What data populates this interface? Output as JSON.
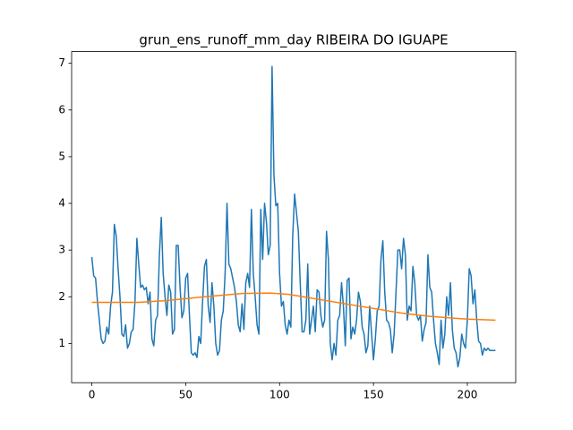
{
  "chart_data": {
    "type": "line",
    "title": "grun_ens_runoff_mm_day RIBEIRA DO IGUAPE",
    "x": [
      0,
      1,
      2,
      3,
      4,
      5,
      6,
      7,
      8,
      9,
      10,
      11,
      12,
      13,
      14,
      15,
      16,
      17,
      18,
      19,
      20,
      21,
      22,
      23,
      24,
      25,
      26,
      27,
      28,
      29,
      30,
      31,
      32,
      33,
      34,
      35,
      36,
      37,
      38,
      39,
      40,
      41,
      42,
      43,
      44,
      45,
      46,
      47,
      48,
      49,
      50,
      51,
      52,
      53,
      54,
      55,
      56,
      57,
      58,
      59,
      60,
      61,
      62,
      63,
      64,
      65,
      66,
      67,
      68,
      69,
      70,
      71,
      72,
      73,
      74,
      75,
      76,
      77,
      78,
      79,
      80,
      81,
      82,
      83,
      84,
      85,
      86,
      87,
      88,
      89,
      90,
      91,
      92,
      93,
      94,
      95,
      96,
      97,
      98,
      99,
      100,
      101,
      102,
      103,
      104,
      105,
      106,
      107,
      108,
      109,
      110,
      111,
      112,
      113,
      114,
      115,
      116,
      117,
      118,
      119,
      120,
      121,
      122,
      123,
      124,
      125,
      126,
      127,
      128,
      129,
      130,
      131,
      132,
      133,
      134,
      135,
      136,
      137,
      138,
      139,
      140,
      141,
      142,
      143,
      144,
      145,
      146,
      147,
      148,
      149,
      150,
      151,
      152,
      153,
      154,
      155,
      156,
      157,
      158,
      159,
      160,
      161,
      162,
      163,
      164,
      165,
      166,
      167,
      168,
      169,
      170,
      171,
      172,
      173,
      174,
      175,
      176,
      177,
      178,
      179,
      180,
      181,
      182,
      183,
      184,
      185,
      186,
      187,
      188,
      189,
      190,
      191,
      192,
      193,
      194,
      195,
      196,
      197,
      198,
      199,
      200,
      201,
      202,
      203,
      204,
      205,
      206,
      207,
      208,
      209,
      210,
      211,
      212,
      213,
      214,
      215
    ],
    "series": [
      {
        "color": "#1f77b4",
        "values": [
          2.85,
          2.45,
          2.4,
          1.9,
          1.5,
          1.1,
          1.0,
          1.05,
          1.35,
          1.2,
          1.8,
          2.1,
          3.55,
          3.3,
          2.6,
          2.0,
          1.2,
          1.15,
          1.4,
          0.9,
          1.0,
          1.25,
          1.3,
          1.9,
          3.25,
          2.7,
          2.2,
          2.25,
          2.15,
          2.2,
          1.85,
          2.1,
          1.1,
          0.95,
          1.5,
          1.6,
          2.9,
          3.7,
          2.5,
          2.0,
          1.6,
          2.25,
          2.1,
          1.2,
          1.3,
          3.1,
          3.1,
          2.2,
          1.55,
          1.7,
          2.4,
          2.5,
          1.6,
          0.8,
          0.75,
          0.8,
          0.7,
          1.15,
          1.0,
          1.9,
          2.65,
          2.8,
          1.8,
          1.45,
          2.3,
          1.8,
          1.0,
          0.75,
          0.85,
          1.5,
          1.7,
          2.5,
          4.0,
          2.7,
          2.6,
          2.4,
          2.2,
          1.9,
          1.4,
          1.25,
          1.85,
          1.3,
          2.3,
          2.5,
          2.2,
          3.87,
          2.5,
          2.0,
          1.4,
          1.2,
          3.87,
          2.8,
          4.0,
          3.6,
          2.9,
          3.1,
          6.93,
          4.6,
          3.95,
          4.0,
          2.5,
          1.8,
          1.9,
          1.4,
          1.2,
          1.5,
          1.35,
          3.3,
          4.2,
          3.8,
          3.4,
          2.3,
          1.25,
          1.25,
          1.5,
          2.7,
          1.2,
          1.5,
          1.8,
          1.25,
          2.15,
          2.1,
          1.6,
          1.35,
          1.5,
          3.4,
          2.8,
          1.0,
          0.65,
          1.0,
          0.75,
          1.5,
          1.6,
          2.3,
          1.8,
          0.95,
          2.35,
          2.4,
          1.1,
          1.35,
          1.2,
          1.5,
          2.1,
          1.9,
          1.35,
          1.2,
          0.8,
          0.95,
          1.8,
          1.2,
          0.65,
          1.1,
          1.7,
          1.8,
          2.8,
          3.2,
          2.1,
          1.5,
          1.45,
          1.3,
          0.8,
          1.2,
          2.1,
          3.0,
          3.0,
          2.6,
          3.25,
          2.9,
          1.5,
          1.8,
          1.7,
          2.65,
          2.3,
          1.6,
          1.5,
          1.6,
          1.05,
          1.3,
          1.45,
          2.9,
          2.2,
          2.1,
          1.5,
          1.0,
          0.8,
          0.55,
          1.5,
          0.9,
          1.2,
          2.0,
          1.6,
          2.3,
          1.3,
          0.9,
          0.8,
          0.5,
          0.7,
          1.2,
          1.0,
          0.9,
          1.5,
          2.6,
          2.45,
          1.85,
          2.15,
          1.5,
          1.05,
          1.0,
          0.75,
          0.9,
          0.85,
          0.9,
          0.85,
          0.85,
          0.85,
          0.85
        ]
      },
      {
        "color": "#ff7f0e",
        "x": [
          0,
          25,
          40,
          60,
          80,
          95,
          105,
          120,
          135,
          150,
          165,
          180,
          200,
          215
        ],
        "values": [
          1.88,
          1.88,
          1.92,
          2.0,
          2.07,
          2.08,
          2.05,
          1.95,
          1.85,
          1.75,
          1.65,
          1.58,
          1.52,
          1.5
        ]
      }
    ],
    "xlim": [
      -10.75,
      225.75
    ],
    "xticks": [
      0,
      50,
      100,
      150,
      200
    ],
    "ylim": [
      0.16,
      7.25
    ],
    "yticks": [
      1,
      2,
      3,
      4,
      5,
      6,
      7
    ]
  }
}
